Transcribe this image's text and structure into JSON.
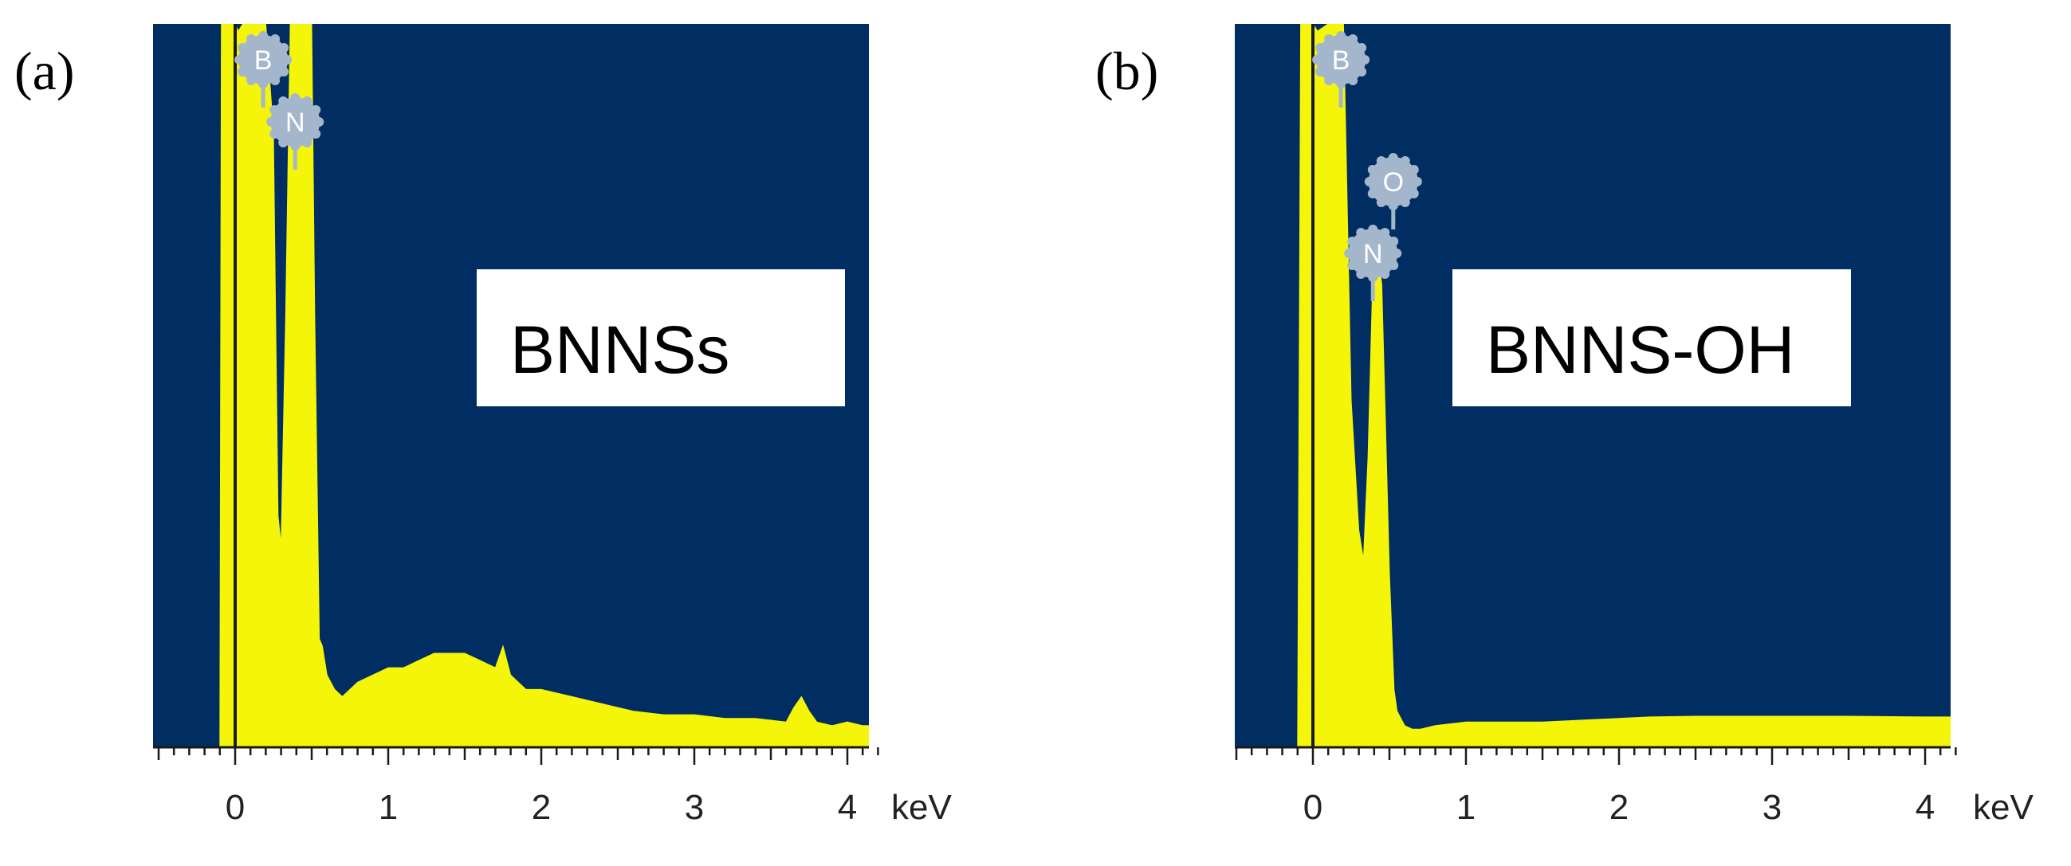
{
  "colors": {
    "background": "#002e63",
    "spectrum": "#f5f50a",
    "marker": "#a3b6cc",
    "axis": "#1a1a1a"
  },
  "chart_data": [
    {
      "type": "area",
      "panel_label": "(a)",
      "sample_label": "BNNSs",
      "x_unit": "keV",
      "x_ticks": [
        0,
        1,
        2,
        3,
        4
      ],
      "xlim": [
        -0.5,
        4.2
      ],
      "ylim": [
        0,
        100
      ],
      "markers": [
        {
          "element": "B",
          "energy": 0.183
        },
        {
          "element": "N",
          "energy": 0.392
        }
      ],
      "series": [
        {
          "x": [
            -0.1,
            -0.09,
            0.0,
            0.02,
            0.05,
            0.1,
            0.15,
            0.2,
            0.25,
            0.28,
            0.3,
            0.33,
            0.36,
            0.4,
            0.45,
            0.5,
            0.52,
            0.55,
            0.57,
            0.6,
            0.65,
            0.7,
            0.8,
            0.9,
            1.0,
            1.1,
            1.2,
            1.3,
            1.4,
            1.5,
            1.6,
            1.7,
            1.75,
            1.8,
            1.9,
            2.0,
            2.2,
            2.4,
            2.6,
            2.8,
            3.0,
            3.2,
            3.4,
            3.6,
            3.65,
            3.7,
            3.75,
            3.8,
            3.9,
            4.0,
            4.1,
            4.2
          ],
          "y": [
            0,
            100,
            100,
            99,
            100,
            100,
            100,
            100,
            85,
            32,
            28,
            60,
            100,
            100,
            100,
            100,
            60,
            15,
            14,
            10,
            8,
            7,
            9,
            10,
            11,
            11,
            12,
            13,
            13,
            13,
            12,
            11,
            14,
            10,
            8,
            8,
            7,
            6,
            5,
            4.5,
            4.5,
            4,
            4,
            3.5,
            5.5,
            7,
            5,
            3.5,
            3,
            3.5,
            3,
            3
          ]
        }
      ]
    },
    {
      "type": "area",
      "panel_label": "(b)",
      "sample_label": "BNNS-OH",
      "x_unit": "keV",
      "x_ticks": [
        0,
        1,
        2,
        3,
        4
      ],
      "xlim": [
        -0.5,
        4.2
      ],
      "ylim": [
        0,
        100
      ],
      "markers": [
        {
          "element": "B",
          "energy": 0.183
        },
        {
          "element": "N",
          "energy": 0.392
        },
        {
          "element": "O",
          "energy": 0.525
        }
      ],
      "series": [
        {
          "x": [
            -0.1,
            -0.08,
            0.0,
            0.03,
            0.1,
            0.15,
            0.18,
            0.2,
            0.25,
            0.3,
            0.33,
            0.36,
            0.4,
            0.45,
            0.5,
            0.53,
            0.55,
            0.6,
            0.65,
            0.7,
            0.8,
            1.0,
            1.2,
            1.5,
            1.8,
            2.0,
            2.2,
            2.5,
            3.0,
            3.5,
            4.0,
            4.2
          ],
          "y": [
            0,
            100,
            100,
            99,
            100,
            100,
            100,
            100,
            48,
            30,
            26,
            40,
            72,
            64,
            24,
            8,
            5,
            3,
            2.5,
            2.5,
            3,
            3.5,
            3.5,
            3.5,
            3.8,
            4,
            4.2,
            4.3,
            4.3,
            4.3,
            4.2,
            4.2
          ]
        }
      ]
    }
  ]
}
